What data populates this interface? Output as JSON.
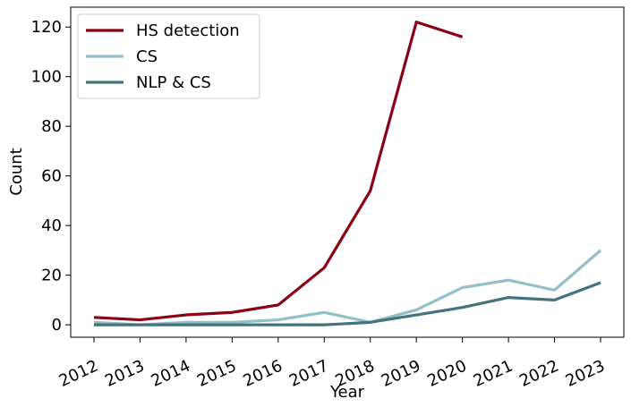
{
  "chart_data": {
    "type": "line",
    "x": [
      "2012",
      "2013",
      "2014",
      "2015",
      "2016",
      "2017",
      "2018",
      "2019",
      "2020",
      "2021",
      "2022",
      "2023"
    ],
    "series": [
      {
        "name": "HS detection",
        "color": "#8b0016",
        "values": [
          3,
          2,
          4,
          5,
          8,
          23,
          54,
          122,
          116,
          null,
          null,
          null
        ]
      },
      {
        "name": "CS",
        "color": "#93bfc6",
        "values": [
          1,
          0,
          1,
          1,
          2,
          5,
          1,
          6,
          15,
          18,
          14,
          30
        ]
      },
      {
        "name": "NLP & CS",
        "color": "#44737b",
        "values": [
          0,
          0,
          0,
          0,
          0,
          0,
          1,
          4,
          7,
          11,
          10,
          17
        ]
      }
    ],
    "xlabel": "Year",
    "ylabel": "Count",
    "ylim": [
      -5,
      128
    ],
    "yticks": [
      0,
      20,
      40,
      60,
      80,
      100,
      120
    ],
    "grid": false,
    "legend": "top-left"
  }
}
